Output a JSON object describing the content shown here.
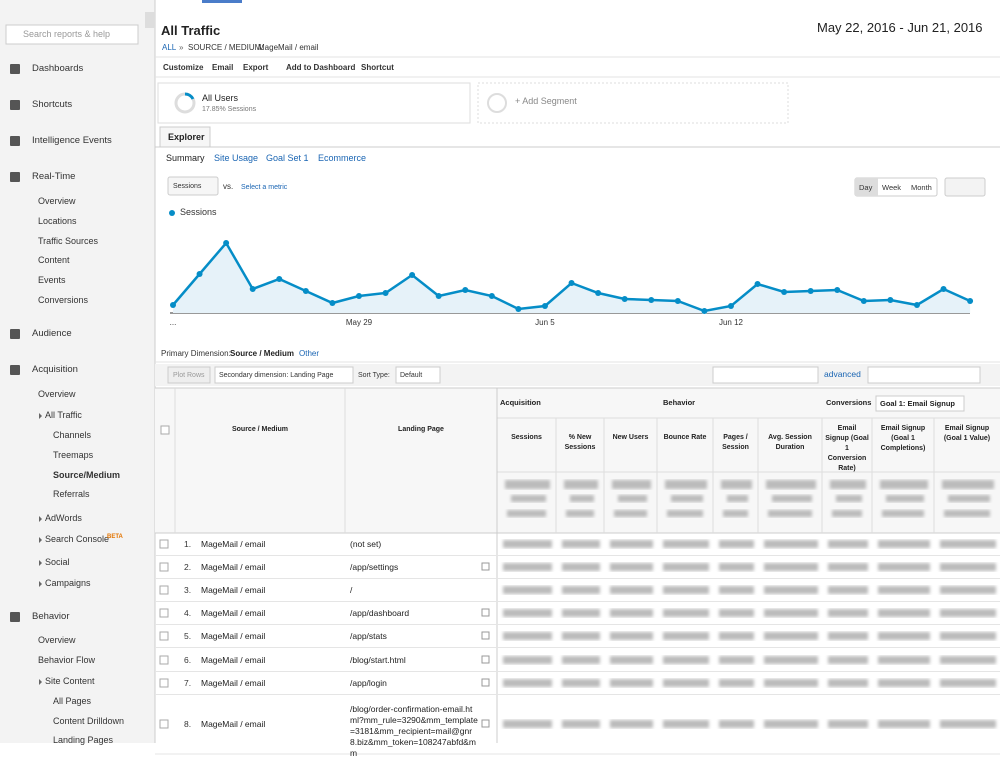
{
  "sidebar": {
    "search": "Search reports & help",
    "items": [
      "Dashboards",
      "Shortcuts",
      "Intelligence Events",
      "Real-Time",
      "Overview",
      "Locations",
      "Traffic Sources",
      "Content",
      "Events",
      "Conversions",
      "Audience",
      "Acquisition",
      "Overview",
      "All Traffic",
      "Channels",
      "Treemaps",
      "Source/Medium",
      "Referrals",
      "AdWords",
      "Search Console",
      "Social",
      "Campaigns",
      "Behavior",
      "Overview",
      "Behavior Flow",
      "Site Content",
      "All Pages",
      "Content Drilldown",
      "Landing Pages"
    ],
    "beta": "BETA"
  },
  "header": {
    "title": "All Traffic",
    "date_range": "May 22, 2016 - Jun 21, 2016",
    "breadcrumb": [
      "ALL",
      "»",
      "SOURCE / MEDIUM:",
      "MageMail / email"
    ],
    "toolbar": [
      "Customize",
      "Email",
      "Export",
      "Add to Dashboard",
      "Shortcut"
    ]
  },
  "segments": {
    "name": "All Users",
    "detail": "17.85% Sessions",
    "add": "+ Add Segment"
  },
  "tabs": {
    "main": "Explorer",
    "sub": [
      "Summary",
      "Site Usage",
      "Goal Set 1",
      "Ecommerce"
    ]
  },
  "chart_controls": {
    "metric": "Sessions",
    "vs": "vs.",
    "select": "Select a metric",
    "buttons": [
      "Day",
      "Week",
      "Month"
    ]
  },
  "chart_data": {
    "type": "line",
    "categories": [
      "...",
      null,
      null,
      null,
      null,
      null,
      null,
      "May 29",
      null,
      null,
      null,
      null,
      null,
      null,
      "Jun 5",
      null,
      null,
      null,
      null,
      null,
      null,
      "Jun 12",
      null,
      null,
      null,
      null,
      null,
      null,
      null,
      null,
      null
    ],
    "series": [
      {
        "name": "Sessions",
        "color": "#058dc7",
        "values": [
          8,
          39,
          70,
          24,
          34,
          22,
          10,
          17,
          20,
          38,
          17,
          23,
          17,
          4,
          7,
          30,
          20,
          14,
          13,
          12,
          2,
          7,
          29,
          21,
          22,
          23,
          12,
          13,
          8,
          24,
          12
        ]
      }
    ],
    "ylim": [
      0,
      85
    ]
  },
  "dimension": {
    "label": "Primary Dimension:",
    "value": "Source / Medium",
    "other": "Other"
  },
  "table_controls": {
    "plot": "Plot Rows",
    "secondary": "Secondary dimension: Landing Page",
    "sort_label": "Sort Type:",
    "sort": "Default",
    "advanced": "advanced"
  },
  "table": {
    "groups": [
      "Acquisition",
      "Behavior",
      "Conversions",
      "Goal 1: Email Signup"
    ],
    "columns": [
      "Source / Medium",
      "Landing Page",
      "Sessions",
      "% New Sessions",
      "New Users",
      "Bounce Rate",
      "Pages / Session",
      "Avg. Session Duration",
      "Email Signup (Goal 1 Conversion Rate)",
      "Email Signup (Goal 1 Completions)",
      "Email Signup (Goal 1 Value)"
    ],
    "rows": [
      [
        "1.",
        "MageMail / email",
        "(not set)"
      ],
      [
        "2.",
        "MageMail / email",
        "/app/settings"
      ],
      [
        "3.",
        "MageMail / email",
        "/"
      ],
      [
        "4.",
        "MageMail / email",
        "/app/dashboard"
      ],
      [
        "5.",
        "MageMail / email",
        "/app/stats"
      ],
      [
        "6.",
        "MageMail / email",
        "/blog/start.html"
      ],
      [
        "7.",
        "MageMail / email",
        "/app/login"
      ],
      [
        "8.",
        "MageMail / email",
        "/blog/order-confirmation-email.html?mm_rule=3290&mm_template=3181&mm_recipient=mail@gnr8.biz&mm_token=108247abfd&mm"
      ]
    ]
  }
}
